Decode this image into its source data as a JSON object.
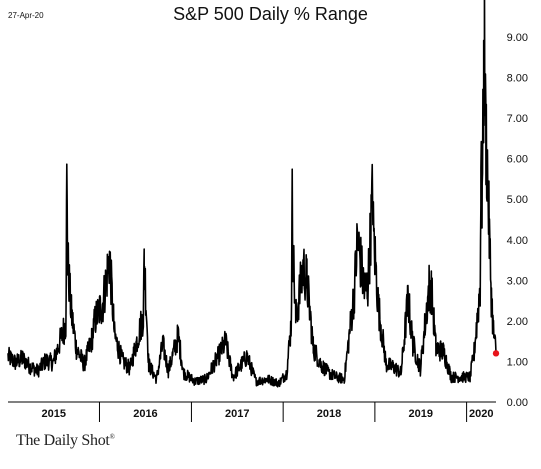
{
  "date_stamp": "27-Apr-20",
  "brand": {
    "name": "The Daily Shot",
    "mark": "®"
  },
  "chart_data": {
    "type": "line",
    "title": "S&P 500 Daily % Range",
    "xlabel": "",
    "ylabel": "",
    "ylim": [
      0,
      9
    ],
    "yticks": [
      "0.00",
      "1.00",
      "2.00",
      "3.00",
      "4.00",
      "5.00",
      "6.00",
      "7.00",
      "8.00",
      "9.00"
    ],
    "ytick_values": [
      0,
      1,
      2,
      3,
      4,
      5,
      6,
      7,
      8,
      9
    ],
    "x_start": "2015-01-02",
    "x_end": "2020-04-27",
    "years": [
      "2015",
      "2016",
      "2017",
      "2018",
      "2019",
      "2020"
    ],
    "grid": false,
    "line_color": "#000000",
    "last_point_color": "#e8141b",
    "series": [
      {
        "x": [
          "2015-01-02",
          "2015-02-01",
          "2015-03-01",
          "2015-04-01",
          "2015-05-01",
          "2015-06-01",
          "2015-07-01",
          "2015-08-20",
          "2015-08-24",
          "2015-08-27",
          "2015-09-10",
          "2015-10-01",
          "2015-11-01",
          "2015-12-01",
          "2015-12-15",
          "2016-01-15",
          "2016-02-10",
          "2016-03-01",
          "2016-04-01",
          "2016-05-01",
          "2016-06-24",
          "2016-06-27",
          "2016-07-15",
          "2016-08-15",
          "2016-09-09",
          "2016-10-01",
          "2016-11-09",
          "2016-12-01",
          "2017-01-15",
          "2017-03-01",
          "2017-05-17",
          "2017-06-15",
          "2017-08-10",
          "2017-09-15",
          "2017-11-01",
          "2017-12-15",
          "2018-01-15",
          "2018-02-02",
          "2018-02-06",
          "2018-02-08",
          "2018-02-20",
          "2018-03-22",
          "2018-04-06",
          "2018-05-01",
          "2018-06-01",
          "2018-07-01",
          "2018-08-01",
          "2018-09-01",
          "2018-10-10",
          "2018-10-24",
          "2018-11-20",
          "2018-12-04",
          "2018-12-24",
          "2018-12-26",
          "2019-01-15",
          "2019-02-15",
          "2019-03-15",
          "2019-04-15",
          "2019-05-13",
          "2019-06-01",
          "2019-07-01",
          "2019-08-05",
          "2019-08-14",
          "2019-09-01",
          "2019-10-02",
          "2019-11-01",
          "2019-12-01",
          "2020-01-15",
          "2020-01-31",
          "2020-02-24",
          "2020-02-27",
          "2020-03-03",
          "2020-03-09",
          "2020-03-12",
          "2020-03-16",
          "2020-03-18",
          "2020-03-24",
          "2020-04-01",
          "2020-04-09",
          "2020-04-17",
          "2020-04-27"
        ],
        "values": [
          1.1,
          0.95,
          1.05,
          0.85,
          0.75,
          1.0,
          0.95,
          1.9,
          5.25,
          3.5,
          2.2,
          1.3,
          0.9,
          1.5,
          2.0,
          2.4,
          3.5,
          1.6,
          1.0,
          0.8,
          2.1,
          3.5,
          0.9,
          0.55,
          1.4,
          0.75,
          1.6,
          0.7,
          0.5,
          0.55,
          1.45,
          0.6,
          1.1,
          0.5,
          0.55,
          0.45,
          0.7,
          1.9,
          4.75,
          3.9,
          2.0,
          3.25,
          2.9,
          1.3,
          0.9,
          0.7,
          0.6,
          0.55,
          2.6,
          3.95,
          2.7,
          2.8,
          5.15,
          4.1,
          2.3,
          0.9,
          0.85,
          0.7,
          2.5,
          1.4,
          0.8,
          2.8,
          2.7,
          1.3,
          1.2,
          0.6,
          0.6,
          0.6,
          1.2,
          2.8,
          5.35,
          4.9,
          7.6,
          8.8,
          6.75,
          6.5,
          5.6,
          3.9,
          2.5,
          1.7,
          1.2
        ]
      }
    ]
  }
}
